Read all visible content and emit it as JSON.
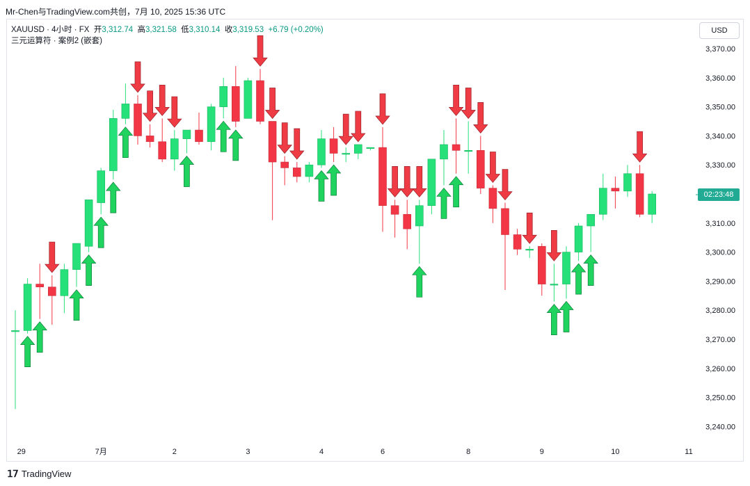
{
  "caption": "Mr-Chen与TradingView.com共创，7月 10, 2025 15:36 UTC",
  "legend": {
    "symbol": "XAUUSD · 4小时 · FX",
    "open_label": "开",
    "open": "3,312.74",
    "high_label": "高",
    "high": "3,321.58",
    "low_label": "低",
    "low": "3,310.14",
    "close_label": "收",
    "close": "3,319.53",
    "change": "+6.79 (+0.20%)",
    "indicator": "三元运算符 · 案例2 (嵌套)"
  },
  "currency_button": "USD",
  "countdown": "02:23:48",
  "branding": "TradingView",
  "colors": {
    "up": "#26e07a",
    "down": "#f23645",
    "up_arrow": "#1fd35e",
    "down_arrow": "#ef3b44",
    "badge": "#22ab94"
  },
  "chart_data": {
    "type": "candlestick",
    "ylim": [
      3235,
      3375
    ],
    "yticks": [
      "3,370.00",
      "3,360.00",
      "3,350.00",
      "3,340.00",
      "3,330.00",
      "3,320.00",
      "3,310.00",
      "3,300.00",
      "3,290.00",
      "3,280.00",
      "3,270.00",
      "3,260.00",
      "3,250.00",
      "3,240.00"
    ],
    "ytick_values": [
      3370,
      3360,
      3350,
      3340,
      3330,
      3320,
      3310,
      3300,
      3290,
      3280,
      3270,
      3260,
      3250,
      3240
    ],
    "xticks": [
      {
        "label": "29",
        "index": 0.5
      },
      {
        "label": "7月",
        "index": 7
      },
      {
        "label": "2",
        "index": 13
      },
      {
        "label": "3",
        "index": 19
      },
      {
        "label": "4",
        "index": 25
      },
      {
        "label": "6",
        "index": 30
      },
      {
        "label": "8",
        "index": 37
      },
      {
        "label": "9",
        "index": 43
      },
      {
        "label": "10",
        "index": 49
      },
      {
        "label": "11",
        "index": 55
      }
    ],
    "candles": [
      {
        "o": 3273,
        "h": 3280,
        "l": 3246,
        "c": 3273
      },
      {
        "o": 3273,
        "h": 3291,
        "l": 3272,
        "c": 3289
      },
      {
        "o": 3289,
        "h": 3296,
        "l": 3277,
        "c": 3288
      },
      {
        "o": 3288,
        "h": 3292,
        "l": 3275,
        "c": 3285
      },
      {
        "o": 3285,
        "h": 3296,
        "l": 3279,
        "c": 3294
      },
      {
        "o": 3294,
        "h": 3302,
        "l": 3288,
        "c": 3303
      },
      {
        "o": 3302,
        "h": 3318,
        "l": 3300,
        "c": 3318
      },
      {
        "o": 3317,
        "h": 3329,
        "l": 3313,
        "c": 3328
      },
      {
        "o": 3328,
        "h": 3349,
        "l": 3325,
        "c": 3346
      },
      {
        "o": 3346,
        "h": 3358,
        "l": 3344,
        "c": 3351
      },
      {
        "o": 3351,
        "h": 3354,
        "l": 3337,
        "c": 3340
      },
      {
        "o": 3340,
        "h": 3344,
        "l": 3336,
        "c": 3338
      },
      {
        "o": 3338,
        "h": 3346,
        "l": 3331,
        "c": 3332
      },
      {
        "o": 3332,
        "h": 3342,
        "l": 3328,
        "c": 3339
      },
      {
        "o": 3339,
        "h": 3342,
        "l": 3334,
        "c": 3342
      },
      {
        "o": 3342,
        "h": 3348,
        "l": 3337,
        "c": 3338
      },
      {
        "o": 3338,
        "h": 3351,
        "l": 3335,
        "c": 3350
      },
      {
        "o": 3350,
        "h": 3360,
        "l": 3346,
        "c": 3357
      },
      {
        "o": 3357,
        "h": 3364,
        "l": 3343,
        "c": 3345
      },
      {
        "o": 3346,
        "h": 3360,
        "l": 3346,
        "c": 3359
      },
      {
        "o": 3359,
        "h": 3363,
        "l": 3344,
        "c": 3345
      },
      {
        "o": 3345,
        "h": 3345,
        "l": 3311,
        "c": 3331
      },
      {
        "o": 3331,
        "h": 3333,
        "l": 3323,
        "c": 3329
      },
      {
        "o": 3329,
        "h": 3331,
        "l": 3324,
        "c": 3326
      },
      {
        "o": 3326,
        "h": 3331,
        "l": 3324,
        "c": 3330
      },
      {
        "o": 3330,
        "h": 3342,
        "l": 3329,
        "c": 3339
      },
      {
        "o": 3339,
        "h": 3343,
        "l": 3331,
        "c": 3334
      },
      {
        "o": 3334,
        "h": 3336,
        "l": 3331,
        "c": 3334
      },
      {
        "o": 3334,
        "h": 3337,
        "l": 3332,
        "c": 3337
      },
      {
        "o": 3336,
        "h": 3336,
        "l": 3335,
        "c": 3336
      },
      {
        "o": 3336,
        "h": 3343,
        "l": 3307,
        "c": 3316
      },
      {
        "o": 3316,
        "h": 3318,
        "l": 3305,
        "c": 3313
      },
      {
        "o": 3313,
        "h": 3318,
        "l": 3301,
        "c": 3308
      },
      {
        "o": 3309,
        "h": 3318,
        "l": 3296,
        "c": 3316
      },
      {
        "o": 3316,
        "h": 3332,
        "l": 3313,
        "c": 3332
      },
      {
        "o": 3332,
        "h": 3342,
        "l": 3323,
        "c": 3337
      },
      {
        "o": 3337,
        "h": 3346,
        "l": 3327,
        "c": 3335
      },
      {
        "o": 3335,
        "h": 3345,
        "l": 3327,
        "c": 3335
      },
      {
        "o": 3335,
        "h": 3340,
        "l": 3320,
        "c": 3322
      },
      {
        "o": 3322,
        "h": 3323,
        "l": 3310,
        "c": 3315
      },
      {
        "o": 3315,
        "h": 3317,
        "l": 3287,
        "c": 3306
      },
      {
        "o": 3306,
        "h": 3308,
        "l": 3299,
        "c": 3301
      },
      {
        "o": 3301,
        "h": 3302,
        "l": 3298,
        "c": 3301
      },
      {
        "o": 3302,
        "h": 3303,
        "l": 3285,
        "c": 3289
      },
      {
        "o": 3289,
        "h": 3296,
        "l": 3283,
        "c": 3289
      },
      {
        "o": 3289,
        "h": 3302,
        "l": 3284,
        "c": 3300
      },
      {
        "o": 3300,
        "h": 3310,
        "l": 3297,
        "c": 3309
      },
      {
        "o": 3309,
        "h": 3312,
        "l": 3300,
        "c": 3313
      },
      {
        "o": 3313,
        "h": 3327,
        "l": 3311,
        "c": 3322
      },
      {
        "o": 3322,
        "h": 3326,
        "l": 3315,
        "c": 3321
      },
      {
        "o": 3321,
        "h": 3330,
        "l": 3319,
        "c": 3327
      },
      {
        "o": 3327,
        "h": 3330,
        "l": 3312,
        "c": 3313
      },
      {
        "o": 3313,
        "h": 3321,
        "l": 3310,
        "c": 3320
      }
    ],
    "signals_up": [
      1,
      2,
      5,
      6,
      7,
      8,
      9,
      14,
      17,
      18,
      25,
      26,
      33,
      35,
      36,
      44,
      45,
      46,
      47
    ],
    "signals_down": [
      3,
      10,
      11,
      12,
      13,
      20,
      21,
      22,
      23,
      27,
      28,
      30,
      31,
      32,
      33,
      36,
      37,
      38,
      39,
      40,
      42,
      44,
      51
    ]
  }
}
